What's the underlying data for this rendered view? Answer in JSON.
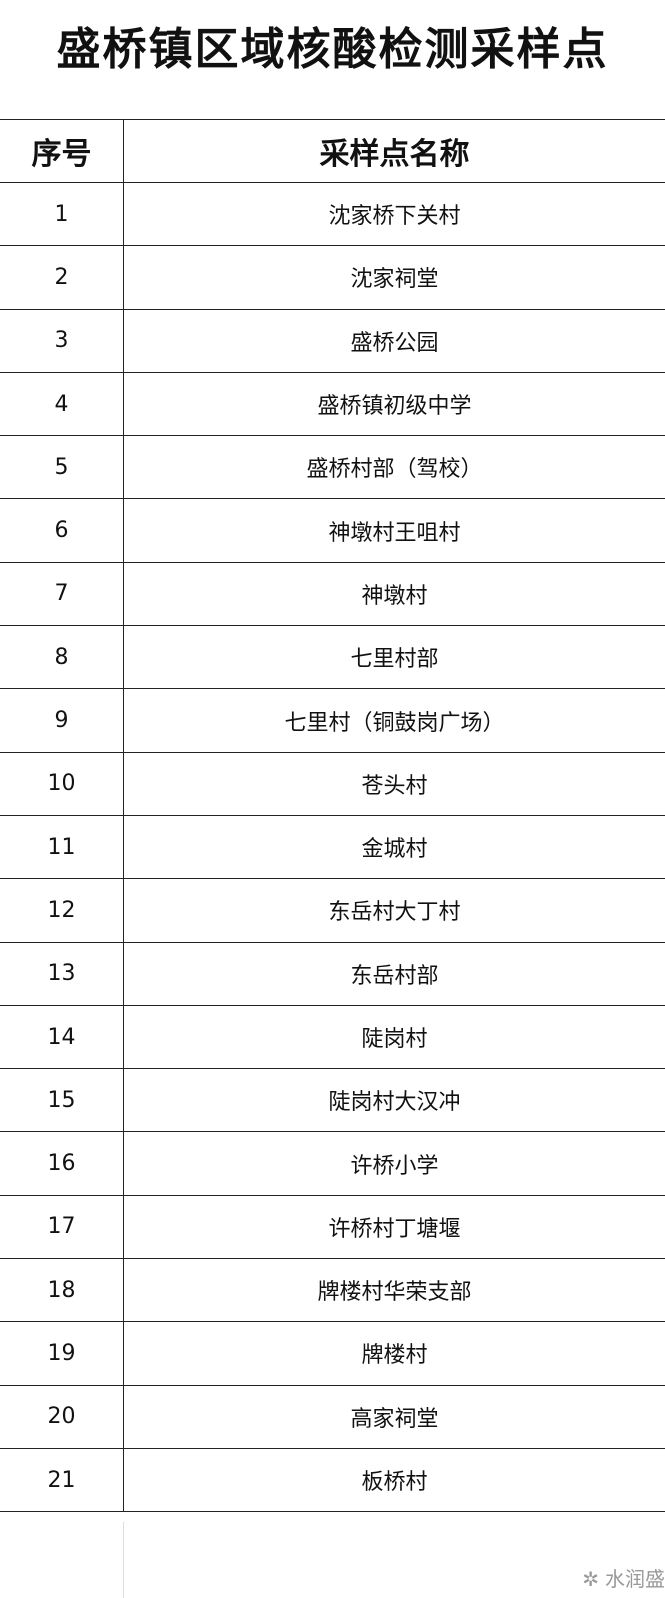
{
  "title": "盛桥镇区域核酸检测采样点",
  "table": {
    "headers": [
      "序号",
      "采样点名称"
    ],
    "rows": [
      {
        "no": "1",
        "name": "沈家桥下关村"
      },
      {
        "no": "2",
        "name": "沈家祠堂"
      },
      {
        "no": "3",
        "name": "盛桥公园"
      },
      {
        "no": "4",
        "name": "盛桥镇初级中学"
      },
      {
        "no": "5",
        "name": "盛桥村部（驾校）"
      },
      {
        "no": "6",
        "name": "神墩村王咀村"
      },
      {
        "no": "7",
        "name": "神墩村"
      },
      {
        "no": "8",
        "name": "七里村部"
      },
      {
        "no": "9",
        "name": "七里村（铜鼓岗广场）"
      },
      {
        "no": "10",
        "name": "苍头村"
      },
      {
        "no": "11",
        "name": "金城村"
      },
      {
        "no": "12",
        "name": "东岳村大丁村"
      },
      {
        "no": "13",
        "name": "东岳村部"
      },
      {
        "no": "14",
        "name": "陡岗村"
      },
      {
        "no": "15",
        "name": "陡岗村大汉冲"
      },
      {
        "no": "16",
        "name": "许桥小学"
      },
      {
        "no": "17",
        "name": "许桥村丁塘堰"
      },
      {
        "no": "18",
        "name": "牌楼村华荣支部"
      },
      {
        "no": "19",
        "name": "牌楼村"
      },
      {
        "no": "20",
        "name": "高家祠堂"
      },
      {
        "no": "21",
        "name": "板桥村"
      }
    ]
  },
  "watermark": {
    "icon": "wechat-icon",
    "text": "水润盛"
  }
}
